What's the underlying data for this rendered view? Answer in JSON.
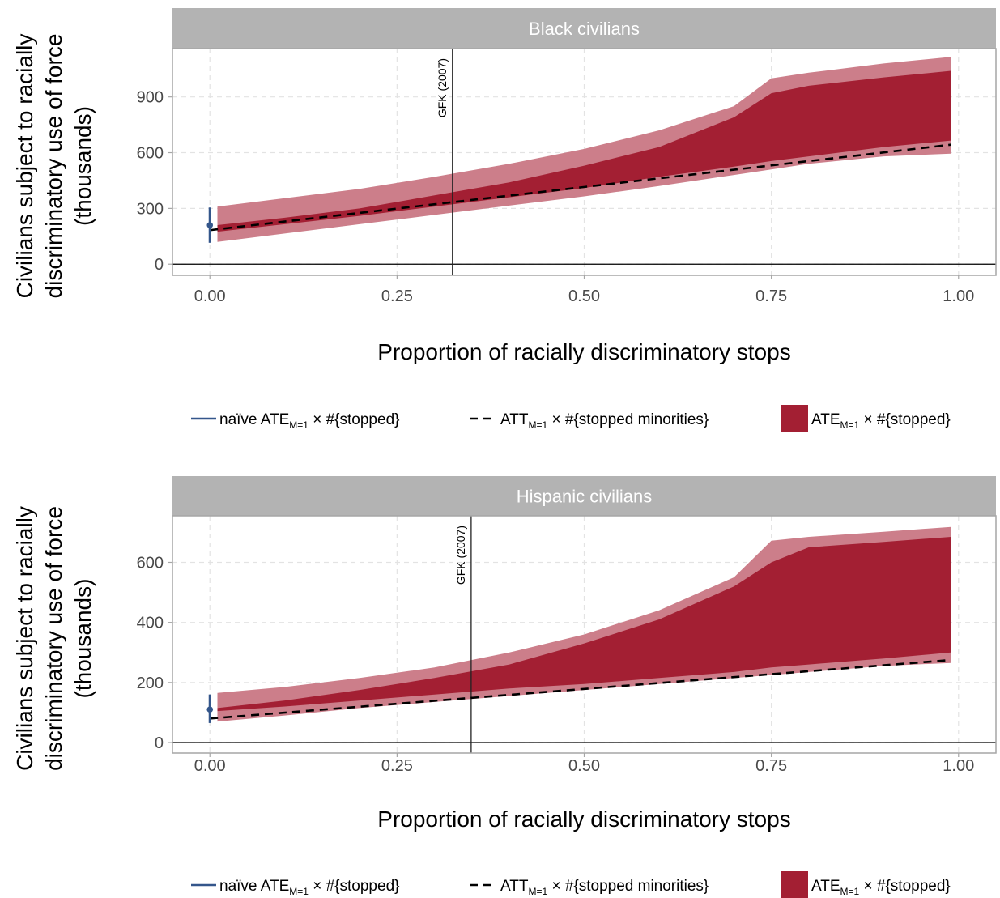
{
  "colors": {
    "naive": "#34568b",
    "att": "#000000",
    "band_dark": "#a31f33",
    "band_light": "#cc7e8a",
    "strip_bg": "#b3b3b3",
    "grid": "#e3e3e3"
  },
  "legend": {
    "naive": {
      "pre": "naïve ATE",
      "sub": "M=1",
      "post": " × #{stopped}"
    },
    "att": {
      "pre": "ATT",
      "sub": "M=1",
      "post": " × #{stopped minorities}"
    },
    "ate": {
      "pre": "ATE",
      "sub": "M=1",
      "post": " × #{stopped}"
    }
  },
  "chart_data": [
    {
      "type": "area",
      "panel": "Black civilians",
      "xlabel": "Proportion of racially discriminatory stops",
      "ylabel_lines": [
        "Civilians subject to racially",
        "discriminatory use of force",
        "(thousands)"
      ],
      "x_ticks": [
        "0.00",
        "0.25",
        "0.50",
        "0.75",
        "1.00"
      ],
      "y_ticks": [
        "0",
        "300",
        "600",
        "900"
      ],
      "xlim": [
        -0.05,
        1.05
      ],
      "ylim": [
        -60,
        1160
      ],
      "y_tick_values": [
        0,
        300,
        600,
        900
      ],
      "reference_line": {
        "x": 0.324,
        "label": "GFK (2007)"
      },
      "naive_point": {
        "x": 0.0,
        "y": 210,
        "lo": 115,
        "hi": 305
      },
      "att_line": {
        "x": [
          0.0,
          0.99
        ],
        "y": [
          183,
          643
        ]
      },
      "outer_band": {
        "x": [
          0.01,
          0.1,
          0.2,
          0.3,
          0.4,
          0.5,
          0.6,
          0.7,
          0.75,
          0.8,
          0.9,
          0.99
        ],
        "lower": [
          120,
          165,
          215,
          265,
          315,
          365,
          420,
          480,
          510,
          540,
          580,
          595
        ],
        "upper": [
          310,
          355,
          405,
          470,
          540,
          620,
          720,
          850,
          1000,
          1030,
          1080,
          1115
        ]
      },
      "inner_band": {
        "x": [
          0.01,
          0.1,
          0.2,
          0.3,
          0.4,
          0.5,
          0.6,
          0.7,
          0.75,
          0.8,
          0.9,
          0.99
        ],
        "lower": [
          175,
          215,
          260,
          310,
          360,
          410,
          470,
          525,
          555,
          580,
          630,
          665
        ],
        "upper": [
          210,
          250,
          300,
          370,
          440,
          530,
          630,
          790,
          920,
          960,
          1005,
          1040
        ]
      }
    },
    {
      "type": "area",
      "panel": "Hispanic civilians",
      "xlabel": "Proportion of racially discriminatory stops",
      "ylabel_lines": [
        "Civilians subject to racially",
        "discriminatory use of force",
        "(thousands)"
      ],
      "x_ticks": [
        "0.00",
        "0.25",
        "0.50",
        "0.75",
        "1.00"
      ],
      "y_ticks": [
        "0",
        "200",
        "400",
        "600"
      ],
      "xlim": [
        -0.05,
        1.05
      ],
      "ylim": [
        -35,
        755
      ],
      "y_tick_values": [
        0,
        200,
        400,
        600
      ],
      "reference_line": {
        "x": 0.349,
        "label": "GFK (2007)"
      },
      "naive_point": {
        "x": 0.0,
        "y": 110,
        "lo": 65,
        "hi": 160
      },
      "att_line": {
        "x": [
          0.0,
          0.99
        ],
        "y": [
          80,
          275
        ]
      },
      "outer_band": {
        "x": [
          0.01,
          0.1,
          0.2,
          0.3,
          0.4,
          0.5,
          0.6,
          0.7,
          0.75,
          0.8,
          0.9,
          0.99
        ],
        "lower": [
          70,
          90,
          115,
          135,
          155,
          175,
          195,
          215,
          225,
          235,
          255,
          265
        ],
        "upper": [
          165,
          185,
          215,
          250,
          300,
          360,
          440,
          550,
          672,
          685,
          702,
          718
        ]
      },
      "inner_band": {
        "x": [
          0.01,
          0.1,
          0.2,
          0.3,
          0.4,
          0.5,
          0.6,
          0.7,
          0.75,
          0.8,
          0.9,
          0.99
        ],
        "lower": [
          105,
          120,
          140,
          160,
          180,
          195,
          215,
          235,
          250,
          260,
          280,
          300
        ],
        "upper": [
          115,
          140,
          175,
          215,
          260,
          330,
          410,
          520,
          600,
          650,
          668,
          685
        ]
      }
    }
  ]
}
